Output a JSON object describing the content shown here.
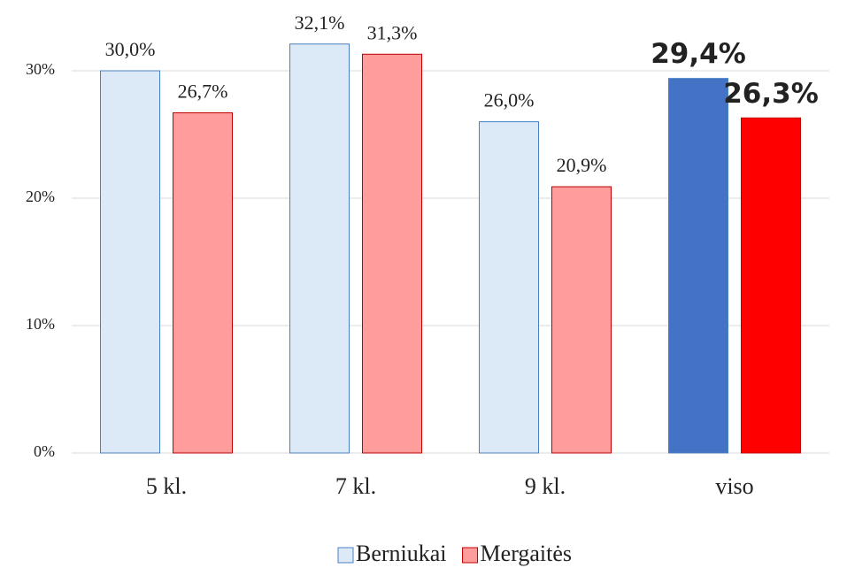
{
  "chart_data": {
    "type": "bar",
    "categories": [
      "5 kl.",
      "7 kl.",
      "9 kl.",
      "viso"
    ],
    "series": [
      {
        "name": "Berniukai",
        "color": "#dce9f6",
        "colors": [
          "#dce9f6",
          "#dce9f6",
          "#dce9f6",
          "#4472c4"
        ],
        "border": "#4a7fc1",
        "values": [
          30.0,
          32.1,
          26.0,
          29.4
        ],
        "value_labels": [
          "30,0%",
          "32,1%",
          "26,0%",
          "29,4%"
        ]
      },
      {
        "name": "Mergaitės",
        "color": "#ff9c9c",
        "colors": [
          "#ff9c9c",
          "#ff9c9c",
          "#ff9c9c",
          "#ff0000"
        ],
        "border": "#c00000",
        "values": [
          26.7,
          31.3,
          20.9,
          26.3
        ],
        "value_labels": [
          "26,7%",
          "31,3%",
          "20,9%",
          "26,3%"
        ]
      }
    ],
    "ylim": [
      0,
      35
    ],
    "yticks": [
      {
        "value": 0,
        "label": "0%"
      },
      {
        "value": 10,
        "label": "10%"
      },
      {
        "value": 20,
        "label": "20%"
      },
      {
        "value": 30,
        "label": "30%"
      }
    ],
    "grid": true
  }
}
